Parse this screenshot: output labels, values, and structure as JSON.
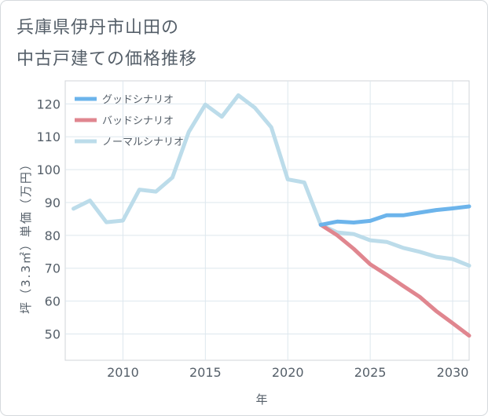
{
  "title": {
    "line1": "兵庫県伊丹市山田の",
    "line2": "中古戸建ての価格推移"
  },
  "chart_data": {
    "type": "line",
    "xlabel": "年",
    "ylabel": "坪（3.3㎡）単価（万円）",
    "xlim": [
      2006.5,
      2031
    ],
    "ylim": [
      42,
      127
    ],
    "x_ticks": [
      2010,
      2015,
      2020,
      2025,
      2030
    ],
    "y_ticks": [
      50,
      60,
      70,
      80,
      90,
      100,
      110,
      120
    ],
    "legend_position": "top-left",
    "series": [
      {
        "name": "グッドシナリオ",
        "color": "#6cb4eb",
        "x": [
          2022,
          2023,
          2024,
          2025,
          2026,
          2027,
          2028,
          2029,
          2030,
          2031
        ],
        "values": [
          83.2,
          84.2,
          83.9,
          84.4,
          86.1,
          86.1,
          86.9,
          87.7,
          88.2,
          88.8
        ]
      },
      {
        "name": "バッドシナリオ",
        "color": "#e0868f",
        "x": [
          2022,
          2023,
          2024,
          2025,
          2026,
          2027,
          2028,
          2029,
          2030,
          2031
        ],
        "values": [
          83.2,
          80.0,
          75.9,
          71.2,
          68.0,
          64.6,
          61.3,
          57.0,
          53.3,
          49.5
        ]
      },
      {
        "name": "ノーマルシナリオ",
        "color": "#bcdcea",
        "x": [
          2007,
          2008,
          2009,
          2010,
          2011,
          2012,
          2013,
          2014,
          2015,
          2016,
          2017,
          2018,
          2019,
          2020,
          2021,
          2022,
          2023,
          2024,
          2025,
          2026,
          2027,
          2028,
          2029,
          2030,
          2031
        ],
        "values": [
          88.1,
          90.6,
          84.0,
          84.5,
          93.9,
          93.3,
          97.6,
          111.5,
          119.8,
          116.1,
          122.6,
          118.8,
          112.9,
          97.0,
          96.1,
          83.2,
          80.9,
          80.4,
          78.5,
          78.0,
          76.2,
          75.0,
          73.5,
          72.8,
          70.8
        ]
      }
    ]
  }
}
